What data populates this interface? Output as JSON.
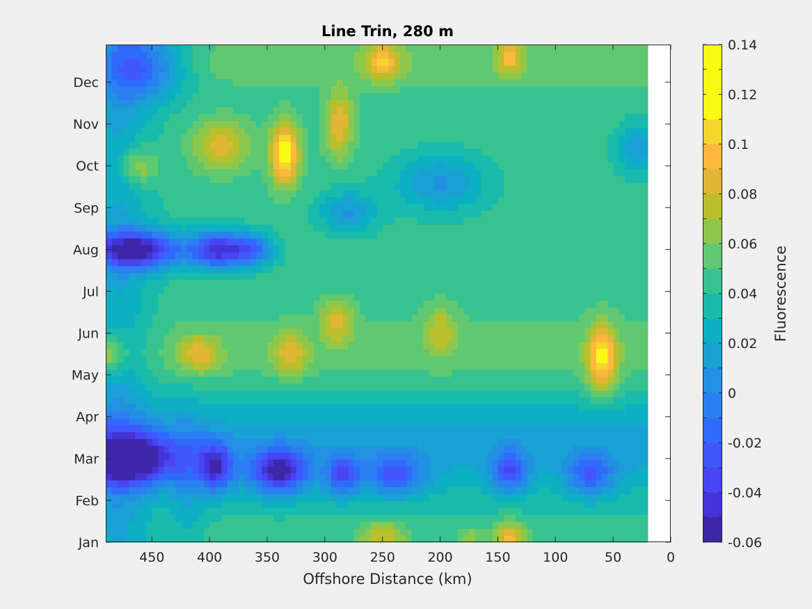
{
  "chart_data": {
    "type": "heatmap",
    "subtype": "filled-contour",
    "title": "Line Trin, 280 m",
    "xlabel": "Offshore Distance (km)",
    "ylabel": "",
    "xlim": [
      0,
      490
    ],
    "x_reversed": true,
    "xticks": [
      450,
      400,
      350,
      300,
      250,
      200,
      150,
      100,
      50,
      0
    ],
    "yticks": [
      "Jan",
      "Feb",
      "Mar",
      "Apr",
      "May",
      "Jun",
      "Jul",
      "Aug",
      "Sep",
      "Oct",
      "Nov",
      "Dec"
    ],
    "ylim_month_index": [
      0,
      11.9
    ],
    "data_x_extent_km": [
      20,
      490
    ],
    "colorbar": {
      "label": "Fluorescence",
      "location": "right",
      "range": [
        -0.06,
        0.14
      ],
      "step": 0.01,
      "tick_values": [
        -0.06,
        -0.04,
        -0.02,
        0,
        0.02,
        0.04,
        0.06,
        0.08,
        0.1,
        0.12,
        0.14
      ],
      "tick_labels": [
        "-0.06",
        "-0.04",
        "-0.02",
        "0",
        "0.02",
        "0.04",
        "0.06",
        "0.08",
        "0.1",
        "0.12",
        "0.14"
      ],
      "colormap": "parula",
      "colors": [
        "#3e26a8",
        "#4334d8",
        "#4745f2",
        "#4257fb",
        "#2f6bfa",
        "#2c7ff0",
        "#2290e3",
        "#19a1d4",
        "#0cb0c2",
        "#18bbab",
        "#36c38f",
        "#5fc870",
        "#8dc84d",
        "#b9c02b",
        "#e1b536",
        "#feb93d",
        "#f6d52d",
        "#f9fb14"
      ],
      "level_value_step": 0.01
    },
    "grid": false,
    "features": [
      {
        "x": 462,
        "y": 7.0,
        "value": -0.06,
        "sx": 40,
        "sy": 0.45
      },
      {
        "x": 395,
        "y": 7.0,
        "value": -0.045,
        "sx": 22,
        "sy": 0.45
      },
      {
        "x": 365,
        "y": 7.0,
        "value": -0.025,
        "sx": 20,
        "sy": 0.4
      },
      {
        "x": 470,
        "y": 2.0,
        "value": -0.06,
        "sx": 40,
        "sy": 0.6
      },
      {
        "x": 340,
        "y": 1.7,
        "value": -0.045,
        "sx": 25,
        "sy": 0.55
      },
      {
        "x": 395,
        "y": 1.8,
        "value": -0.035,
        "sx": 15,
        "sy": 0.6
      },
      {
        "x": 460,
        "y": 11.4,
        "value": -0.025,
        "sx": 40,
        "sy": 0.8
      },
      {
        "x": 285,
        "y": 1.6,
        "value": -0.015,
        "sx": 15,
        "sy": 0.5
      },
      {
        "x": 240,
        "y": 1.6,
        "value": -0.01,
        "sx": 25,
        "sy": 0.5
      },
      {
        "x": 140,
        "y": 1.7,
        "value": -0.015,
        "sx": 15,
        "sy": 0.5
      },
      {
        "x": 70,
        "y": 1.6,
        "value": -0.01,
        "sx": 20,
        "sy": 0.5
      },
      {
        "x": 200,
        "y": 8.6,
        "value": 0.005,
        "sx": 40,
        "sy": 0.7
      },
      {
        "x": 280,
        "y": 7.9,
        "value": 0.005,
        "sx": 25,
        "sy": 0.5
      },
      {
        "x": 30,
        "y": 9.4,
        "value": 0.01,
        "sx": 18,
        "sy": 0.6
      },
      {
        "x": 335,
        "y": 9.3,
        "value": 0.13,
        "sx": 12,
        "sy": 0.75
      },
      {
        "x": 390,
        "y": 9.5,
        "value": 0.09,
        "sx": 25,
        "sy": 0.6
      },
      {
        "x": 462,
        "y": 9.0,
        "value": 0.085,
        "sx": 16,
        "sy": 0.45
      },
      {
        "x": 288,
        "y": 10.0,
        "value": 0.095,
        "sx": 12,
        "sy": 0.8
      },
      {
        "x": 60,
        "y": 4.4,
        "value": 0.115,
        "sx": 12,
        "sy": 0.8
      },
      {
        "x": 488,
        "y": 4.5,
        "value": 0.085,
        "sx": 14,
        "sy": 0.4
      },
      {
        "x": 410,
        "y": 4.5,
        "value": 0.085,
        "sx": 18,
        "sy": 0.45
      },
      {
        "x": 330,
        "y": 4.5,
        "value": 0.085,
        "sx": 14,
        "sy": 0.5
      },
      {
        "x": 290,
        "y": 5.3,
        "value": 0.085,
        "sx": 14,
        "sy": 0.5
      },
      {
        "x": 200,
        "y": 5.1,
        "value": 0.075,
        "sx": 14,
        "sy": 0.6
      },
      {
        "x": 250,
        "y": 11.5,
        "value": 0.095,
        "sx": 15,
        "sy": 0.45
      },
      {
        "x": 140,
        "y": 11.6,
        "value": 0.09,
        "sx": 10,
        "sy": 0.4
      },
      {
        "x": 250,
        "y": 0.15,
        "value": 0.085,
        "sx": 20,
        "sy": 0.35
      },
      {
        "x": 140,
        "y": 0.15,
        "value": 0.1,
        "sx": 14,
        "sy": 0.35
      },
      {
        "x": 175,
        "y": 0.1,
        "value": 0.07,
        "sx": 10,
        "sy": 0.3
      }
    ]
  }
}
